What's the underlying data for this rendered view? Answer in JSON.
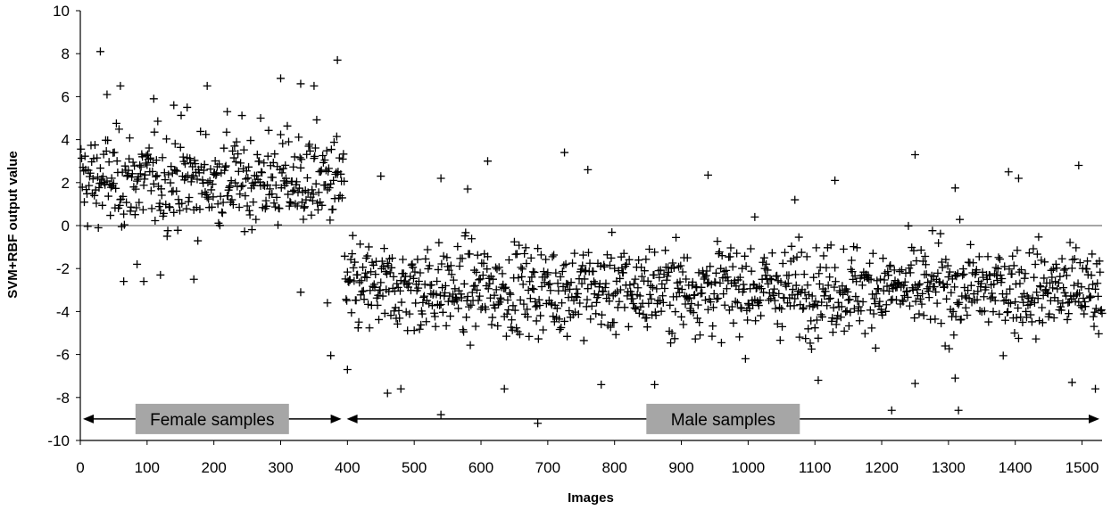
{
  "chart_data": {
    "type": "scatter",
    "title": "",
    "xlabel": "Images",
    "ylabel": "SVM+RBF output value",
    "xlim": [
      0,
      1530
    ],
    "ylim": [
      -10,
      10
    ],
    "x_ticks": [
      0,
      100,
      200,
      300,
      400,
      500,
      600,
      700,
      800,
      900,
      1000,
      1100,
      1200,
      1300,
      1400,
      1500
    ],
    "y_ticks": [
      -10,
      -8,
      -6,
      -4,
      -2,
      0,
      2,
      4,
      6,
      8,
      10
    ],
    "marker": "+",
    "grid": false,
    "reference_line": 0,
    "colors": {
      "points": "#000000",
      "zero_line": "#a6a6a6",
      "label_box": "#a6a6a6"
    },
    "annotations": [
      {
        "text": "Female samples",
        "x_from": 0,
        "x_to": 395,
        "y": -9
      },
      {
        "text": "Male samples",
        "x_from": 395,
        "x_to": 1530,
        "y": -9
      }
    ],
    "series": [
      {
        "female_count": 395,
        "male_count": 1135,
        "points_outliers": [
          [
            30,
            8.1
          ],
          [
            385,
            7.7
          ],
          [
            300,
            6.85
          ],
          [
            330,
            6.6
          ],
          [
            350,
            6.5
          ],
          [
            60,
            6.5
          ],
          [
            190,
            6.5
          ],
          [
            40,
            6.1
          ],
          [
            110,
            5.9
          ],
          [
            140,
            5.6
          ],
          [
            160,
            5.5
          ],
          [
            220,
            5.3
          ],
          [
            270,
            5.0
          ],
          [
            725,
            3.4
          ],
          [
            1250,
            3.3
          ],
          [
            610,
            3.0
          ],
          [
            1495,
            2.8
          ],
          [
            1390,
            2.5
          ],
          [
            760,
            2.6
          ],
          [
            1405,
            2.2
          ],
          [
            450,
            2.3
          ],
          [
            540,
            2.2
          ],
          [
            940,
            2.35
          ],
          [
            1130,
            2.1
          ],
          [
            580,
            1.7
          ],
          [
            1310,
            1.75
          ],
          [
            1070,
            1.2
          ],
          [
            1010,
            0.4
          ],
          [
            685,
            -9.2
          ],
          [
            540,
            -8.8
          ],
          [
            1215,
            -8.6
          ],
          [
            1315,
            -8.6
          ],
          [
            1520,
            -7.6
          ],
          [
            460,
            -7.8
          ],
          [
            480,
            -7.6
          ],
          [
            635,
            -7.6
          ],
          [
            860,
            -7.4
          ],
          [
            780,
            -7.4
          ],
          [
            1250,
            -7.35
          ],
          [
            1485,
            -7.3
          ],
          [
            1105,
            -7.2
          ],
          [
            1310,
            -7.1
          ],
          [
            330,
            -3.1
          ],
          [
            120,
            -2.3
          ],
          [
            85,
            -1.8
          ],
          [
            170,
            -2.5
          ],
          [
            95,
            -2.6
          ],
          [
            65,
            -2.6
          ],
          [
            370,
            -3.6
          ],
          [
            375,
            -6.05
          ],
          [
            400,
            -6.7
          ]
        ]
      }
    ]
  }
}
